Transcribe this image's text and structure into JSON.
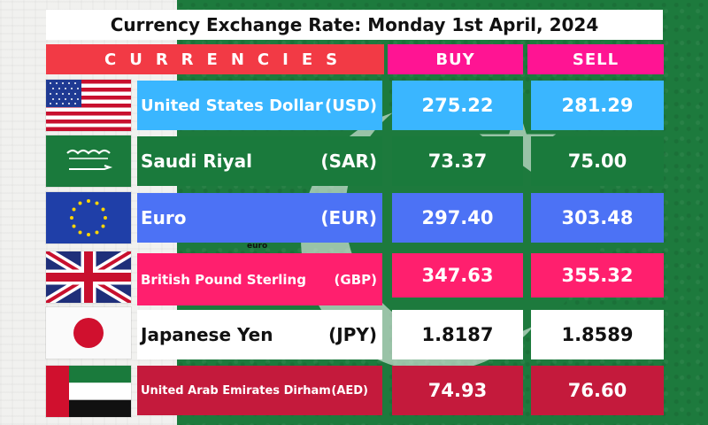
{
  "title": "Currency Exchange Rate: Monday 1st April, 2024",
  "headers": {
    "currencies": "CURRENCIES",
    "buy": "BUY",
    "sell": "SELL"
  },
  "euro_tag": "euro",
  "rows": [
    {
      "name": "United States Dollar",
      "code": "(USD)",
      "buy": "275.22",
      "sell": "281.29",
      "flag": "us-flag-icon"
    },
    {
      "name": "Saudi Riyal",
      "code": "(SAR)",
      "buy": "73.37",
      "sell": "75.00",
      "flag": "saudi-flag-icon"
    },
    {
      "name": "Euro",
      "code": "(EUR)",
      "buy": "297.40",
      "sell": "303.48",
      "flag": "eu-flag-icon"
    },
    {
      "name": "British Pound Sterling",
      "code": "(GBP)",
      "buy": "347.63",
      "sell": "355.32",
      "flag": "uk-flag-icon"
    },
    {
      "name": "Japanese Yen",
      "code": "(JPY)",
      "buy": "1.8187",
      "sell": "1.8589",
      "flag": "japan-flag-icon"
    },
    {
      "name": "United Arab Emirates Dirham",
      "code": "(AED)",
      "buy": "74.93",
      "sell": "76.60",
      "flag": "uae-flag-icon"
    }
  ],
  "colors": {
    "header_red": "#f23a45",
    "header_pink": "#ff1493",
    "usd_cell": "#3ab6ff",
    "sar_cell": "#1a7a3c",
    "eur_cell": "#4c72f5",
    "gbp_cell": "#ff1f6e",
    "jpy_cell": "#ffffff",
    "aed_cell": "#c41a3c"
  }
}
